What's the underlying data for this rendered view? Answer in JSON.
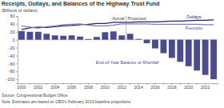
{
  "chart_data": {
    "type": "bar",
    "title": "Receipts, Outlays, and Balances of the Highway Trust Fund",
    "subtitle": "(Billions of dollars)",
    "source": "Source: Congressional Budget Office.",
    "note": "Note: Estimates are based on CBO's February 2013 baseline projections.",
    "categories": [
      "2000",
      null,
      "2002",
      null,
      "2004",
      null,
      "2006",
      null,
      "2008",
      null,
      "2010",
      null,
      "2012",
      null,
      "2014",
      null,
      "2016",
      null,
      "2018",
      null,
      "2020",
      null,
      "2022",
      null
    ],
    "series": [
      {
        "name": "End-of-Year Balance or Shortfall",
        "type": "bar",
        "color": "#4b4b8f",
        "values": [
          22,
          20,
          20,
          15,
          11,
          10,
          11,
          8,
          2,
          7,
          19,
          21,
          11,
          15,
          2,
          -9,
          -22,
          -34,
          -46,
          -56,
          -67,
          -78,
          -89,
          -100
        ]
      },
      {
        "name": "Outlays",
        "type": "line",
        "color": "#23235e",
        "values": [
          26,
          30,
          32,
          31,
          33,
          35,
          36,
          38,
          39,
          41,
          41,
          44,
          44,
          44,
          45,
          45,
          45,
          46,
          47,
          47,
          48,
          49,
          49,
          50
        ]
      },
      {
        "name": "Receipts",
        "type": "line",
        "color": "#7b7bc0",
        "values": [
          35,
          32,
          29,
          33,
          35,
          38,
          39,
          40,
          37,
          35,
          35,
          37,
          40,
          40,
          40,
          40,
          39,
          39,
          39,
          39,
          39,
          39,
          38,
          38
        ]
      }
    ],
    "annotations": [
      {
        "text": "Actual"
      },
      {
        "text": "Projected"
      }
    ],
    "divider": 12.5,
    "ylim": [
      -110,
      60
    ],
    "yticks": [
      60,
      40,
      20,
      0,
      -20,
      -40,
      -60,
      -80,
      -100
    ],
    "grid": false
  }
}
